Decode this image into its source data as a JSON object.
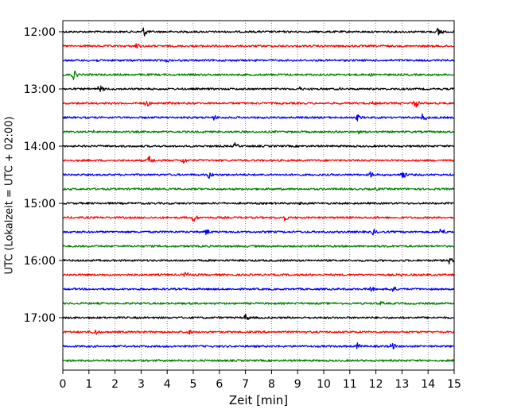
{
  "chart_data": {
    "type": "line",
    "title": "",
    "xlabel": "Zeit  [min]",
    "ylabel": "UTC (Lokalzeit = UTC + 02:00)",
    "xlim": [
      0,
      15
    ],
    "x_ticks": [
      0,
      1,
      2,
      3,
      4,
      5,
      6,
      7,
      8,
      9,
      10,
      11,
      12,
      13,
      14,
      15
    ],
    "x_tick_labels": [
      "0",
      "1",
      "2",
      "3",
      "4",
      "5",
      "6",
      "7",
      "8",
      "9",
      "10",
      "11",
      "12",
      "13",
      "14",
      "15"
    ],
    "y_ticks": [
      {
        "label": "12:00",
        "row": 0
      },
      {
        "label": "13:00",
        "row": 4
      },
      {
        "label": "14:00",
        "row": 8
      },
      {
        "label": "15:00",
        "row": 12
      },
      {
        "label": "16:00",
        "row": 16
      },
      {
        "label": "17:00",
        "row": 20
      }
    ],
    "grid": "vertical-dotted",
    "minutes_per_row": 15,
    "row_colors": [
      "#000000",
      "#ff0000",
      "#0000ff",
      "#008000"
    ],
    "traces": [
      {
        "start": "12:00",
        "color": "#000000",
        "events": [
          {
            "t": 3.1,
            "amp": 9
          },
          {
            "t": 14.4,
            "amp": 9
          }
        ]
      },
      {
        "start": "12:15",
        "color": "#ff0000",
        "events": [
          {
            "t": 2.8,
            "amp": 7
          },
          {
            "t": 12.3,
            "amp": 3
          }
        ]
      },
      {
        "start": "12:30",
        "color": "#0000ff",
        "events": [
          {
            "t": 1.3,
            "amp": 3
          },
          {
            "t": 4.0,
            "amp": 4
          }
        ]
      },
      {
        "start": "12:45",
        "color": "#008000",
        "events": [
          {
            "t": 0.4,
            "amp": 9
          },
          {
            "t": 11.8,
            "amp": 3
          }
        ]
      },
      {
        "start": "13:00",
        "color": "#000000",
        "events": [
          {
            "t": 1.4,
            "amp": 8
          },
          {
            "t": 9.1,
            "amp": 4
          },
          {
            "t": 10.6,
            "amp": 3
          }
        ]
      },
      {
        "start": "13:15",
        "color": "#ff0000",
        "events": [
          {
            "t": 3.2,
            "amp": 7
          },
          {
            "t": 4.1,
            "amp": 3
          },
          {
            "t": 11.9,
            "amp": 4
          },
          {
            "t": 13.5,
            "amp": 9
          }
        ]
      },
      {
        "start": "13:30",
        "color": "#0000ff",
        "events": [
          {
            "t": 5.8,
            "amp": 5
          },
          {
            "t": 11.3,
            "amp": 6
          },
          {
            "t": 13.8,
            "amp": 8
          }
        ]
      },
      {
        "start": "13:45",
        "color": "#008000",
        "events": [
          {
            "t": 1.2,
            "amp": 3
          },
          {
            "t": 11.3,
            "amp": 4
          }
        ]
      },
      {
        "start": "14:00",
        "color": "#000000",
        "events": [
          {
            "t": 6.6,
            "amp": 6
          }
        ]
      },
      {
        "start": "14:15",
        "color": "#ff0000",
        "events": [
          {
            "t": 3.3,
            "amp": 9
          },
          {
            "t": 4.6,
            "amp": 7
          }
        ]
      },
      {
        "start": "14:30",
        "color": "#0000ff",
        "events": [
          {
            "t": 5.6,
            "amp": 7
          },
          {
            "t": 11.8,
            "amp": 6
          },
          {
            "t": 13.0,
            "amp": 9
          }
        ]
      },
      {
        "start": "14:45",
        "color": "#008000",
        "events": [
          {
            "t": 12.0,
            "amp": 4
          }
        ]
      },
      {
        "start": "15:00",
        "color": "#000000",
        "events": [
          {
            "t": 9.1,
            "amp": 3
          }
        ]
      },
      {
        "start": "15:15",
        "color": "#ff0000",
        "events": [
          {
            "t": 5.0,
            "amp": 8
          },
          {
            "t": 8.5,
            "amp": 6
          },
          {
            "t": 12.0,
            "amp": 3
          }
        ]
      },
      {
        "start": "15:30",
        "color": "#0000ff",
        "events": [
          {
            "t": 5.5,
            "amp": 6
          },
          {
            "t": 11.9,
            "amp": 6
          },
          {
            "t": 14.5,
            "amp": 8
          }
        ]
      },
      {
        "start": "15:45",
        "color": "#008000",
        "events": [
          {
            "t": 12.4,
            "amp": 3
          }
        ]
      },
      {
        "start": "16:00",
        "color": "#000000",
        "events": [
          {
            "t": 14.8,
            "amp": 7
          }
        ]
      },
      {
        "start": "16:15",
        "color": "#ff0000",
        "events": [
          {
            "t": 4.7,
            "amp": 6
          },
          {
            "t": 13.0,
            "amp": 3
          }
        ]
      },
      {
        "start": "16:30",
        "color": "#0000ff",
        "events": [
          {
            "t": 11.8,
            "amp": 6
          },
          {
            "t": 12.6,
            "amp": 8
          }
        ]
      },
      {
        "start": "16:45",
        "color": "#008000",
        "events": [
          {
            "t": 12.2,
            "amp": 4
          }
        ]
      },
      {
        "start": "17:00",
        "color": "#000000",
        "events": [
          {
            "t": 7.0,
            "amp": 7
          }
        ]
      },
      {
        "start": "17:15",
        "color": "#ff0000",
        "events": [
          {
            "t": 1.2,
            "amp": 8
          },
          {
            "t": 4.8,
            "amp": 6
          }
        ]
      },
      {
        "start": "17:30",
        "color": "#0000ff",
        "events": [
          {
            "t": 11.3,
            "amp": 6
          },
          {
            "t": 12.6,
            "amp": 8
          }
        ]
      },
      {
        "start": "17:45",
        "color": "#008000",
        "events": []
      }
    ]
  }
}
